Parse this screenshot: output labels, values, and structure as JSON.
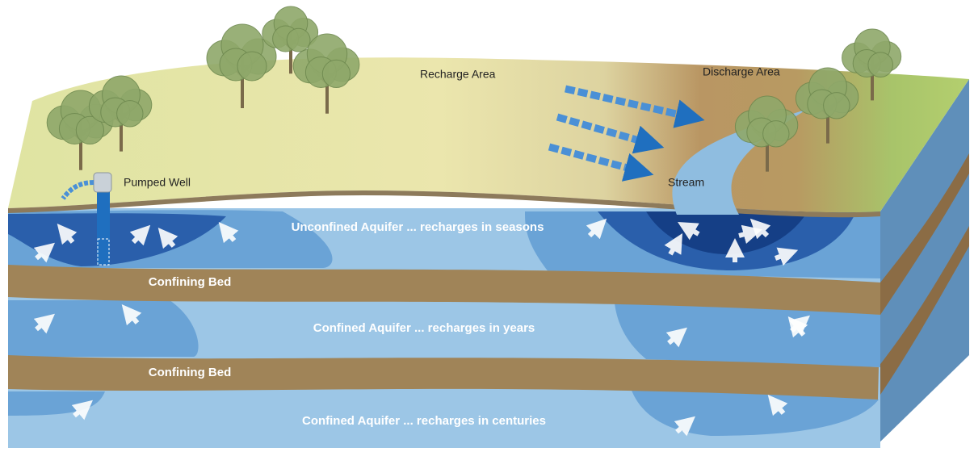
{
  "labels": {
    "recharge_area": "Recharge Area",
    "discharge_area": "Discharge Area",
    "pumped_well": "Pumped Well",
    "stream": "Stream"
  },
  "layers": [
    "Unconfined Aquifer ... recharges in seasons",
    "Confining Bed",
    "Confined Aquifer ... recharges in years",
    "Confining Bed",
    "Confined Aquifer ... recharges in centuries"
  ]
}
